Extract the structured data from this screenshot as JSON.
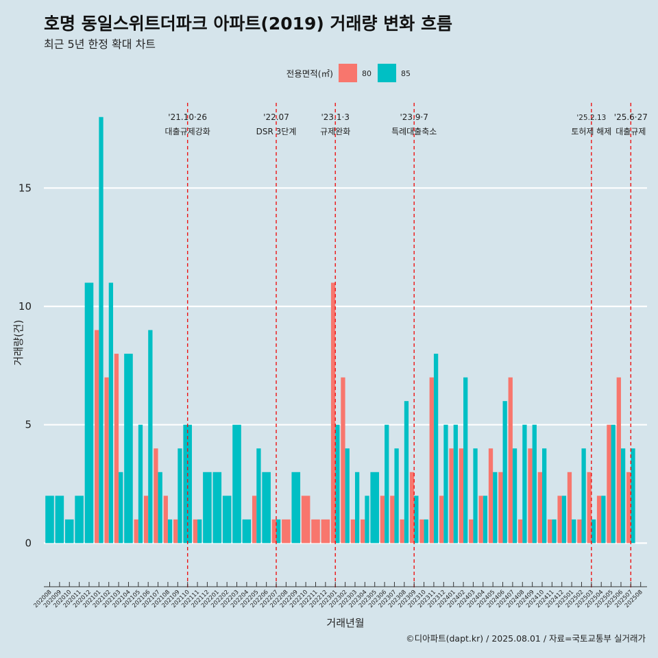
{
  "chart_data": {
    "type": "bar",
    "title": "호명 동일스위트더파크 아파트(2019) 거래량 변화 흐름",
    "subtitle": "최근 5년 한정 확대 차트",
    "xlabel": "거래년월",
    "ylabel": "거래량(건)",
    "ylim": [
      -1.9,
      18.6
    ],
    "y_ticks": [
      0,
      5,
      10,
      15
    ],
    "grid": "horizontal",
    "legend": {
      "title": "전용면적(㎡)",
      "position": "top"
    },
    "caption": "©디아파트(dapt.kr) / 2025.08.01 / 자료=국토교통부 실거래가",
    "categories": [
      "202008",
      "202009",
      "202010",
      "202011",
      "202012",
      "202101",
      "202102",
      "202103",
      "202104",
      "202105",
      "202106",
      "202107",
      "202108",
      "202109",
      "202110",
      "202111",
      "202112",
      "202201",
      "202202",
      "202203",
      "202204",
      "202205",
      "202206",
      "202207",
      "202208",
      "202209",
      "202210",
      "202211",
      "202212",
      "202301",
      "202302",
      "202303",
      "202304",
      "202305",
      "202306",
      "202307",
      "202308",
      "202309",
      "202310",
      "202311",
      "202312",
      "202401",
      "202402",
      "202403",
      "202404",
      "202405",
      "202406",
      "202407",
      "202408",
      "202409",
      "202410",
      "202411",
      "202412",
      "202501",
      "202502",
      "202503",
      "202504",
      "202505",
      "202506",
      "202507",
      "202508"
    ],
    "series": [
      {
        "name": "80",
        "color": "#f8766d",
        "values": [
          0,
          0,
          0,
          0,
          0,
          9,
          7,
          8,
          0,
          1,
          2,
          4,
          2,
          1,
          0,
          1,
          0,
          0,
          0,
          0,
          0,
          2,
          0,
          1,
          1,
          0,
          2,
          1,
          1,
          11,
          7,
          1,
          1,
          0,
          2,
          2,
          1,
          3,
          1,
          7,
          2,
          4,
          4,
          1,
          2,
          4,
          3,
          7,
          1,
          4,
          3,
          1,
          2,
          3,
          1,
          3,
          2,
          5,
          7,
          3,
          0
        ]
      },
      {
        "name": "85",
        "color": "#00bfc4",
        "values": [
          2,
          2,
          1,
          2,
          11,
          18,
          11,
          3,
          8,
          5,
          9,
          3,
          1,
          4,
          5,
          1,
          3,
          3,
          2,
          5,
          1,
          4,
          3,
          1,
          0,
          3,
          0,
          0,
          0,
          5,
          4,
          3,
          2,
          3,
          5,
          4,
          6,
          2,
          1,
          8,
          5,
          5,
          7,
          4,
          2,
          3,
          6,
          4,
          5,
          5,
          4,
          1,
          2,
          1,
          4,
          1,
          2,
          5,
          4,
          4,
          0
        ]
      }
    ],
    "annotations": [
      {
        "index": 14,
        "date": "'21.10·26",
        "label": "대출규제강화"
      },
      {
        "index": 23,
        "date": "'22.07",
        "label": "DSR 3단계"
      },
      {
        "index": 29,
        "date": "'23.1·3",
        "label": "규제완화"
      },
      {
        "index": 37,
        "date": "'23.9·7",
        "label": "특례대출축소"
      },
      {
        "index": 55,
        "date": "'25.2.13",
        "label": "토허제 해제"
      },
      {
        "index": 59,
        "date": "'25.6·27",
        "label": "대출규제"
      }
    ]
  }
}
